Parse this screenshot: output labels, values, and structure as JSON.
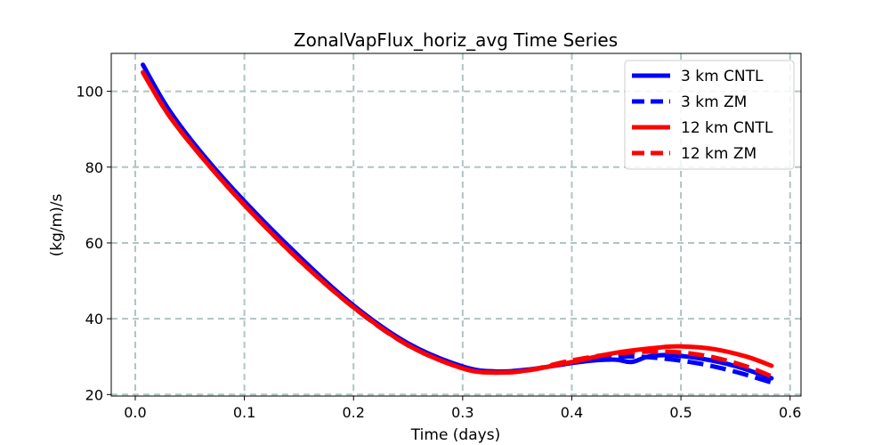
{
  "chart_data": {
    "type": "line",
    "title": "ZonalVapFlux_horiz_avg Time Series",
    "xlabel": "Time (days)",
    "ylabel": "(kg/m)/s",
    "xlim": [
      -0.022,
      0.61
    ],
    "ylim": [
      19.6,
      110
    ],
    "xticks": [
      0.0,
      0.1,
      0.2,
      0.3,
      0.4,
      0.5,
      0.6
    ],
    "xtick_labels": [
      "0.0",
      "0.1",
      "0.2",
      "0.3",
      "0.4",
      "0.5",
      "0.6"
    ],
    "yticks": [
      20,
      40,
      60,
      80,
      100
    ],
    "ytick_labels": [
      "20",
      "40",
      "60",
      "80",
      "100"
    ],
    "grid": true,
    "legend_position": "top-right",
    "series": [
      {
        "name": "3 km CNTL",
        "color": "#0000ff",
        "style": "solid",
        "x": [
          0.007,
          0.03,
          0.06,
          0.1,
          0.15,
          0.2,
          0.25,
          0.3,
          0.33,
          0.36,
          0.4,
          0.42,
          0.44,
          0.455,
          0.47,
          0.49,
          0.52,
          0.55,
          0.583
        ],
        "y": [
          107,
          95.5,
          84,
          71,
          56.5,
          43.5,
          33.5,
          27.4,
          26.1,
          26.6,
          28.3,
          29.0,
          29.2,
          28.6,
          30.0,
          30.4,
          29.4,
          27.5,
          24.3
        ]
      },
      {
        "name": "3 km ZM",
        "color": "#0000ff",
        "style": "dashed",
        "x": [
          0.007,
          0.03,
          0.06,
          0.1,
          0.15,
          0.2,
          0.25,
          0.3,
          0.33,
          0.36,
          0.4,
          0.43,
          0.46,
          0.49,
          0.52,
          0.55,
          0.583
        ],
        "y": [
          105.5,
          94.5,
          83.5,
          70.5,
          56,
          43,
          33,
          27,
          25.9,
          26.4,
          28.6,
          29.8,
          30.0,
          29.3,
          28.0,
          26.0,
          23.2
        ]
      },
      {
        "name": "12 km CNTL",
        "color": "#ff0000",
        "style": "solid",
        "x": [
          0.007,
          0.03,
          0.06,
          0.1,
          0.15,
          0.2,
          0.25,
          0.3,
          0.33,
          0.36,
          0.4,
          0.44,
          0.48,
          0.5,
          0.53,
          0.56,
          0.583
        ],
        "y": [
          105,
          94,
          83,
          70,
          55.5,
          43,
          33,
          26.9,
          25.8,
          26.4,
          28.6,
          31.0,
          32.4,
          32.7,
          32.0,
          30.0,
          27.6
        ]
      },
      {
        "name": "12 km ZM",
        "color": "#ff0000",
        "style": "dashed",
        "x": [
          0.007,
          0.03,
          0.06,
          0.1,
          0.15,
          0.2,
          0.25,
          0.3,
          0.33,
          0.36,
          0.4,
          0.44,
          0.47,
          0.5,
          0.53,
          0.56,
          0.583
        ],
        "y": [
          105,
          94,
          83,
          70,
          55.5,
          43,
          33,
          26.9,
          25.8,
          26.4,
          29.0,
          30.8,
          31.3,
          31.1,
          29.8,
          27.4,
          24.8
        ]
      }
    ]
  }
}
